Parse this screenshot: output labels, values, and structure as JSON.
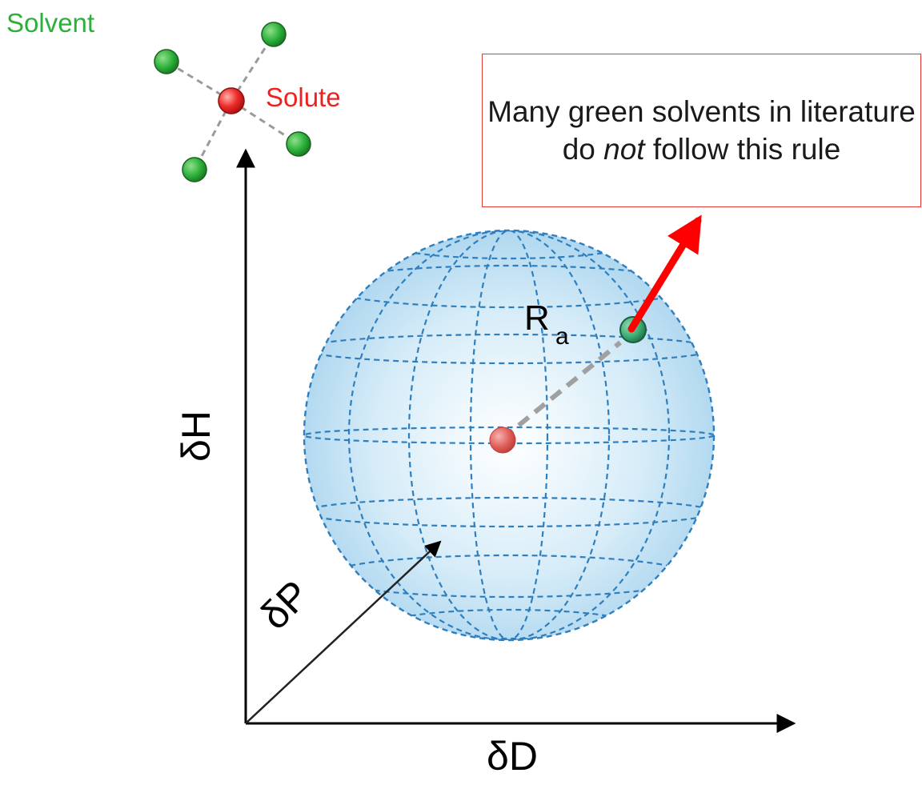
{
  "legend": {
    "solvent_label": "Solvent",
    "solute_label": "Solute"
  },
  "axes": {
    "x_label": "δD",
    "y_label": "δH",
    "z_label": "δP"
  },
  "sphere": {
    "radius_symbol": "R",
    "radius_subscript": "a"
  },
  "callout": {
    "text_before": "Many green solvents in literature do ",
    "text_emphasis": "not",
    "text_after": " follow this rule"
  },
  "colors": {
    "solvent": "#2e9e3a",
    "solute": "#e53935",
    "sphere_fill": "#bcdff2",
    "sphere_grid": "#2f7fbf",
    "pointer_arrow": "#ff0000"
  }
}
